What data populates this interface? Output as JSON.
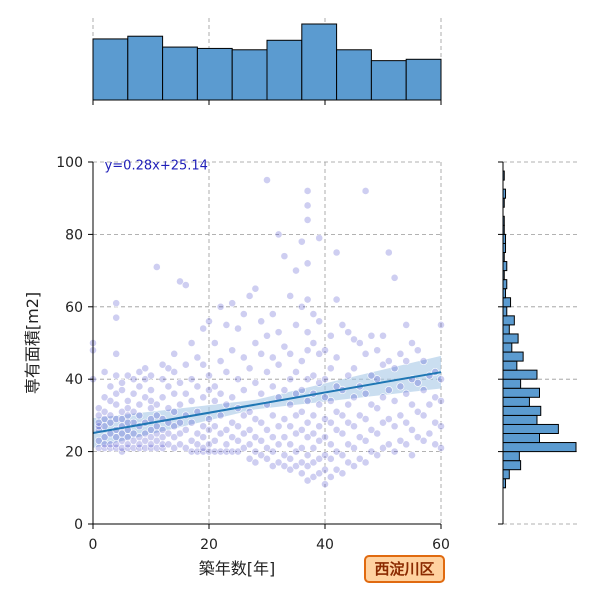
{
  "chart_data": {
    "type": "scatter",
    "xlabel": "築年数[年]",
    "ylabel": "専有面積[m2]",
    "xlim": [
      0,
      60
    ],
    "ylim": [
      0,
      100
    ],
    "xticks": [
      0,
      20,
      40,
      60
    ],
    "yticks": [
      0,
      20,
      40,
      60,
      80,
      100
    ],
    "grid": true,
    "regression": {
      "equation": "y=0.28x+25.14",
      "slope": 0.28,
      "intercept": 25.14
    },
    "badge": "西淀川区",
    "points": [
      [
        0,
        40
      ],
      [
        0,
        48
      ],
      [
        0,
        50
      ],
      [
        1,
        21
      ],
      [
        1,
        23
      ],
      [
        1,
        26
      ],
      [
        1,
        27
      ],
      [
        1,
        28
      ],
      [
        1,
        30
      ],
      [
        1,
        32
      ],
      [
        2,
        21
      ],
      [
        2,
        22
      ],
      [
        2,
        24
      ],
      [
        2,
        27
      ],
      [
        2,
        29
      ],
      [
        2,
        31
      ],
      [
        2,
        35
      ],
      [
        2,
        42
      ],
      [
        3,
        21
      ],
      [
        3,
        22
      ],
      [
        3,
        25
      ],
      [
        3,
        28
      ],
      [
        3,
        30
      ],
      [
        3,
        34
      ],
      [
        3,
        38
      ],
      [
        4,
        21
      ],
      [
        4,
        22
      ],
      [
        4,
        24
      ],
      [
        4,
        26
      ],
      [
        4,
        29
      ],
      [
        4,
        33
      ],
      [
        4,
        36
      ],
      [
        4,
        41
      ],
      [
        4,
        47
      ],
      [
        4,
        57
      ],
      [
        4,
        61
      ],
      [
        5,
        20
      ],
      [
        5,
        21
      ],
      [
        5,
        23
      ],
      [
        5,
        25
      ],
      [
        5,
        27
      ],
      [
        5,
        29
      ],
      [
        5,
        31
      ],
      [
        5,
        37
      ],
      [
        5,
        39
      ],
      [
        6,
        21
      ],
      [
        6,
        22
      ],
      [
        6,
        24
      ],
      [
        6,
        26
      ],
      [
        6,
        28
      ],
      [
        6,
        30
      ],
      [
        6,
        32
      ],
      [
        6,
        34
      ],
      [
        6,
        41
      ],
      [
        7,
        21
      ],
      [
        7,
        23
      ],
      [
        7,
        25
      ],
      [
        7,
        28
      ],
      [
        7,
        31
      ],
      [
        7,
        36
      ],
      [
        7,
        40
      ],
      [
        8,
        21
      ],
      [
        8,
        22
      ],
      [
        8,
        24
      ],
      [
        8,
        27
      ],
      [
        8,
        30
      ],
      [
        8,
        33
      ],
      [
        8,
        38
      ],
      [
        8,
        42
      ],
      [
        9,
        21
      ],
      [
        9,
        23
      ],
      [
        9,
        25
      ],
      [
        9,
        28
      ],
      [
        9,
        35
      ],
      [
        9,
        40
      ],
      [
        9,
        43
      ],
      [
        10,
        21
      ],
      [
        10,
        22
      ],
      [
        10,
        24
      ],
      [
        10,
        26
      ],
      [
        10,
        29
      ],
      [
        10,
        32
      ],
      [
        10,
        34
      ],
      [
        10,
        37
      ],
      [
        10,
        41
      ],
      [
        11,
        21
      ],
      [
        11,
        23
      ],
      [
        11,
        25
      ],
      [
        11,
        27
      ],
      [
        11,
        30
      ],
      [
        11,
        33
      ],
      [
        11,
        71
      ],
      [
        12,
        21
      ],
      [
        12,
        22
      ],
      [
        12,
        24
      ],
      [
        12,
        26
      ],
      [
        12,
        29
      ],
      [
        12,
        35
      ],
      [
        12,
        40
      ],
      [
        12,
        44
      ],
      [
        13,
        22
      ],
      [
        13,
        25
      ],
      [
        13,
        28
      ],
      [
        13,
        32
      ],
      [
        13,
        38
      ],
      [
        13,
        43
      ],
      [
        14,
        21
      ],
      [
        14,
        24
      ],
      [
        14,
        27
      ],
      [
        14,
        31
      ],
      [
        14,
        36
      ],
      [
        14,
        42
      ],
      [
        14,
        47
      ],
      [
        15,
        22
      ],
      [
        15,
        25
      ],
      [
        15,
        28
      ],
      [
        15,
        33
      ],
      [
        15,
        39
      ],
      [
        15,
        67
      ],
      [
        16,
        21
      ],
      [
        16,
        26
      ],
      [
        16,
        30
      ],
      [
        16,
        36
      ],
      [
        16,
        44
      ],
      [
        16,
        66
      ],
      [
        17,
        20
      ],
      [
        17,
        23
      ],
      [
        17,
        28
      ],
      [
        17,
        34
      ],
      [
        17,
        40
      ],
      [
        17,
        50
      ],
      [
        18,
        20
      ],
      [
        18,
        22
      ],
      [
        18,
        25
      ],
      [
        18,
        31
      ],
      [
        18,
        38
      ],
      [
        18,
        46
      ],
      [
        19,
        20
      ],
      [
        19,
        21
      ],
      [
        19,
        24
      ],
      [
        19,
        27
      ],
      [
        19,
        35
      ],
      [
        19,
        44
      ],
      [
        19,
        54
      ],
      [
        20,
        20
      ],
      [
        20,
        22
      ],
      [
        20,
        26
      ],
      [
        20,
        29
      ],
      [
        20,
        37
      ],
      [
        20,
        41
      ],
      [
        20,
        56
      ],
      [
        21,
        20
      ],
      [
        21,
        23
      ],
      [
        21,
        27
      ],
      [
        21,
        34
      ],
      [
        21,
        38
      ],
      [
        21,
        50
      ],
      [
        22,
        20
      ],
      [
        22,
        25
      ],
      [
        22,
        30
      ],
      [
        22,
        36
      ],
      [
        22,
        45
      ],
      [
        22,
        60
      ],
      [
        23,
        20
      ],
      [
        23,
        22
      ],
      [
        23,
        26
      ],
      [
        23,
        33
      ],
      [
        23,
        42
      ],
      [
        23,
        55
      ],
      [
        24,
        20
      ],
      [
        24,
        24
      ],
      [
        24,
        28
      ],
      [
        24,
        35
      ],
      [
        24,
        48
      ],
      [
        24,
        61
      ],
      [
        25,
        20
      ],
      [
        25,
        23
      ],
      [
        25,
        27
      ],
      [
        25,
        32
      ],
      [
        25,
        40
      ],
      [
        25,
        54
      ],
      [
        26,
        21
      ],
      [
        26,
        25
      ],
      [
        26,
        30
      ],
      [
        26,
        37
      ],
      [
        26,
        46
      ],
      [
        26,
        58
      ],
      [
        27,
        18
      ],
      [
        27,
        22
      ],
      [
        27,
        26
      ],
      [
        27,
        31
      ],
      [
        27,
        43
      ],
      [
        27,
        63
      ],
      [
        28,
        17
      ],
      [
        28,
        20
      ],
      [
        28,
        24
      ],
      [
        28,
        29
      ],
      [
        28,
        39
      ],
      [
        28,
        50
      ],
      [
        28,
        65
      ],
      [
        29,
        19
      ],
      [
        29,
        23
      ],
      [
        29,
        28
      ],
      [
        29,
        36
      ],
      [
        29,
        47
      ],
      [
        29,
        56
      ],
      [
        30,
        18
      ],
      [
        30,
        21
      ],
      [
        30,
        26
      ],
      [
        30,
        33
      ],
      [
        30,
        42
      ],
      [
        30,
        52
      ],
      [
        30,
        95
      ],
      [
        31,
        16
      ],
      [
        31,
        20
      ],
      [
        31,
        24
      ],
      [
        31,
        30
      ],
      [
        31,
        38
      ],
      [
        31,
        46
      ],
      [
        31,
        58
      ],
      [
        32,
        17
      ],
      [
        32,
        22
      ],
      [
        32,
        27
      ],
      [
        32,
        35
      ],
      [
        32,
        44
      ],
      [
        32,
        53
      ],
      [
        32,
        80
      ],
      [
        33,
        16
      ],
      [
        33,
        19
      ],
      [
        33,
        24
      ],
      [
        33,
        29
      ],
      [
        33,
        37
      ],
      [
        33,
        49
      ],
      [
        33,
        74
      ],
      [
        34,
        15
      ],
      [
        34,
        18
      ],
      [
        34,
        22
      ],
      [
        34,
        27
      ],
      [
        34,
        33
      ],
      [
        34,
        40
      ],
      [
        34,
        47
      ],
      [
        34,
        63
      ],
      [
        35,
        16
      ],
      [
        35,
        20
      ],
      [
        35,
        25
      ],
      [
        35,
        30
      ],
      [
        35,
        36
      ],
      [
        35,
        42
      ],
      [
        35,
        55
      ],
      [
        35,
        70
      ],
      [
        36,
        14
      ],
      [
        36,
        17
      ],
      [
        36,
        21
      ],
      [
        36,
        26
      ],
      [
        36,
        31
      ],
      [
        36,
        37
      ],
      [
        36,
        45
      ],
      [
        36,
        60
      ],
      [
        36,
        78
      ],
      [
        37,
        12
      ],
      [
        37,
        16
      ],
      [
        37,
        19
      ],
      [
        37,
        24
      ],
      [
        37,
        28
      ],
      [
        37,
        34
      ],
      [
        37,
        40
      ],
      [
        37,
        48
      ],
      [
        37,
        53
      ],
      [
        37,
        62
      ],
      [
        37,
        72
      ],
      [
        37,
        84
      ],
      [
        37,
        88
      ],
      [
        37,
        92
      ],
      [
        38,
        13
      ],
      [
        38,
        17
      ],
      [
        38,
        21
      ],
      [
        38,
        25
      ],
      [
        38,
        30
      ],
      [
        38,
        36
      ],
      [
        38,
        41
      ],
      [
        38,
        50
      ],
      [
        38,
        58
      ],
      [
        39,
        14
      ],
      [
        39,
        18
      ],
      [
        39,
        23
      ],
      [
        39,
        27
      ],
      [
        39,
        33
      ],
      [
        39,
        39
      ],
      [
        39,
        47
      ],
      [
        39,
        56
      ],
      [
        39,
        79
      ],
      [
        40,
        11
      ],
      [
        40,
        15
      ],
      [
        40,
        19
      ],
      [
        40,
        24
      ],
      [
        40,
        29
      ],
      [
        40,
        35
      ],
      [
        40,
        40
      ],
      [
        40,
        48
      ],
      [
        41,
        13
      ],
      [
        41,
        18
      ],
      [
        41,
        22
      ],
      [
        41,
        28
      ],
      [
        41,
        34
      ],
      [
        41,
        43
      ],
      [
        41,
        52
      ],
      [
        42,
        15
      ],
      [
        42,
        20
      ],
      [
        42,
        26
      ],
      [
        42,
        31
      ],
      [
        42,
        38
      ],
      [
        42,
        46
      ],
      [
        42,
        62
      ],
      [
        42,
        75
      ],
      [
        43,
        14
      ],
      [
        43,
        19
      ],
      [
        43,
        25
      ],
      [
        43,
        30
      ],
      [
        43,
        37
      ],
      [
        43,
        55
      ],
      [
        44,
        17
      ],
      [
        44,
        22
      ],
      [
        44,
        28
      ],
      [
        44,
        33
      ],
      [
        44,
        41
      ],
      [
        44,
        53
      ],
      [
        45,
        16
      ],
      [
        45,
        21
      ],
      [
        45,
        27
      ],
      [
        45,
        35
      ],
      [
        45,
        43
      ],
      [
        45,
        51
      ],
      [
        46,
        18
      ],
      [
        46,
        24
      ],
      [
        46,
        30
      ],
      [
        46,
        38
      ],
      [
        46,
        50
      ],
      [
        47,
        17
      ],
      [
        47,
        23
      ],
      [
        47,
        29
      ],
      [
        47,
        36
      ],
      [
        47,
        47
      ],
      [
        47,
        92
      ],
      [
        48,
        20
      ],
      [
        48,
        26
      ],
      [
        48,
        33
      ],
      [
        48,
        41
      ],
      [
        48,
        52
      ],
      [
        49,
        19
      ],
      [
        49,
        25
      ],
      [
        49,
        32
      ],
      [
        49,
        40
      ],
      [
        49,
        48
      ],
      [
        50,
        21
      ],
      [
        50,
        28
      ],
      [
        50,
        35
      ],
      [
        50,
        44
      ],
      [
        50,
        52
      ],
      [
        51,
        22
      ],
      [
        51,
        29
      ],
      [
        51,
        37
      ],
      [
        51,
        45
      ],
      [
        51,
        75
      ],
      [
        52,
        20
      ],
      [
        52,
        27
      ],
      [
        52,
        34
      ],
      [
        52,
        43
      ],
      [
        52,
        68
      ],
      [
        53,
        23
      ],
      [
        53,
        30
      ],
      [
        53,
        38
      ],
      [
        53,
        47
      ],
      [
        54,
        22
      ],
      [
        54,
        28
      ],
      [
        54,
        36
      ],
      [
        54,
        45
      ],
      [
        54,
        55
      ],
      [
        55,
        19
      ],
      [
        55,
        26
      ],
      [
        55,
        33
      ],
      [
        55,
        40
      ],
      [
        55,
        50
      ],
      [
        56,
        24
      ],
      [
        56,
        31
      ],
      [
        56,
        39
      ],
      [
        56,
        48
      ],
      [
        57,
        23
      ],
      [
        57,
        30
      ],
      [
        57,
        37
      ],
      [
        57,
        45
      ],
      [
        58,
        25
      ],
      [
        58,
        33
      ],
      [
        58,
        41
      ],
      [
        59,
        22
      ],
      [
        59,
        28
      ],
      [
        59,
        35
      ],
      [
        59,
        42
      ],
      [
        60,
        21
      ],
      [
        60,
        27
      ],
      [
        60,
        34
      ],
      [
        60,
        40
      ],
      [
        60,
        55
      ]
    ]
  },
  "colors": {
    "point": "#3c3cc8",
    "regression": "#1f77b4",
    "band": "#a6c8e6",
    "hist_fill": "#5b9bd0",
    "badge_fill": "#ffd2a0",
    "badge_stroke": "#e06a10"
  }
}
